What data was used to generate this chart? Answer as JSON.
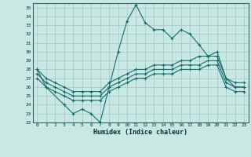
{
  "xlabel": "Humidex (Indice chaleur)",
  "xlim": [
    -0.5,
    23.5
  ],
  "ylim": [
    22,
    35.5
  ],
  "yticks": [
    22,
    23,
    24,
    25,
    26,
    27,
    28,
    29,
    30,
    31,
    32,
    33,
    34,
    35
  ],
  "xticks": [
    0,
    1,
    2,
    3,
    4,
    5,
    6,
    7,
    8,
    9,
    10,
    11,
    12,
    13,
    14,
    15,
    16,
    17,
    18,
    19,
    20,
    21,
    22,
    23
  ],
  "background_color": "#c8e8e4",
  "grid_color": "#a8ccca",
  "line_color": "#1a6b6b",
  "lines": [
    {
      "x": [
        0,
        1,
        3,
        4,
        5,
        6,
        7,
        8,
        9,
        10,
        11,
        12,
        13,
        14,
        15,
        16,
        17,
        18,
        19,
        20,
        21,
        22,
        23
      ],
      "y": [
        28.0,
        26.0,
        24.0,
        23.0,
        23.5,
        23.0,
        22.0,
        26.0,
        30.0,
        33.5,
        35.3,
        33.3,
        32.5,
        32.5,
        31.5,
        32.5,
        32.0,
        30.8,
        29.5,
        30.0,
        27.0,
        26.0,
        26.0
      ],
      "marker": true
    },
    {
      "x": [
        0,
        1,
        2,
        3,
        4,
        5,
        6,
        7,
        8,
        9,
        10,
        11,
        12,
        13,
        14,
        15,
        16,
        17,
        18,
        19,
        20,
        21,
        22,
        23
      ],
      "y": [
        28.0,
        27.0,
        26.5,
        26.0,
        25.5,
        25.5,
        25.5,
        25.5,
        26.5,
        27.0,
        27.5,
        28.0,
        28.0,
        28.5,
        28.5,
        28.5,
        29.0,
        29.0,
        29.5,
        29.5,
        29.5,
        27.0,
        26.5,
        26.5
      ],
      "marker": true
    },
    {
      "x": [
        0,
        1,
        2,
        3,
        4,
        5,
        6,
        7,
        8,
        9,
        10,
        11,
        12,
        13,
        14,
        15,
        16,
        17,
        18,
        19,
        20,
        21,
        22,
        23
      ],
      "y": [
        27.5,
        26.5,
        26.0,
        25.5,
        25.0,
        25.0,
        25.0,
        25.0,
        26.0,
        26.5,
        27.0,
        27.5,
        27.5,
        28.0,
        28.0,
        28.0,
        28.5,
        28.5,
        28.5,
        29.0,
        29.0,
        26.5,
        26.0,
        26.0
      ],
      "marker": true
    },
    {
      "x": [
        0,
        1,
        2,
        3,
        4,
        5,
        6,
        7,
        8,
        9,
        10,
        11,
        12,
        13,
        14,
        15,
        16,
        17,
        18,
        19,
        20,
        21,
        22,
        23
      ],
      "y": [
        27.0,
        26.0,
        25.5,
        25.0,
        24.5,
        24.5,
        24.5,
        24.5,
        25.5,
        26.0,
        26.5,
        27.0,
        27.0,
        27.5,
        27.5,
        27.5,
        28.0,
        28.0,
        28.0,
        28.5,
        28.5,
        26.0,
        25.5,
        25.5
      ],
      "marker": true
    }
  ]
}
